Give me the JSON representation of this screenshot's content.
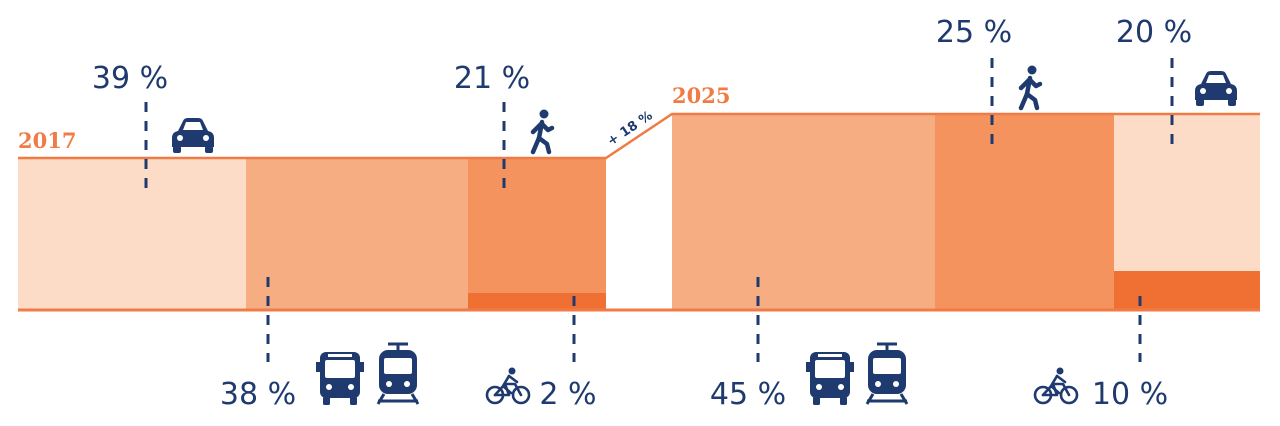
{
  "chart_data": {
    "type": "stacked-bar",
    "title": "",
    "colors": {
      "car": "#fcdcc6",
      "public_transport": "#f7ad82",
      "walking": "#f5935e",
      "cycling": "#f07033",
      "baseline": "#f07b45",
      "labels": "#1f3a6e"
    },
    "icons": {
      "car": "car-icon",
      "public_transport": [
        "bus-icon",
        "tram-icon"
      ],
      "walking": "pedestrian-icon",
      "cycling": "cyclist-icon"
    },
    "years": [
      {
        "year": "2017",
        "total_index": 100,
        "shares": {
          "car": 39,
          "public_transport": 38,
          "walking": 21,
          "cycling": 2
        },
        "labels": {
          "car": "39 %",
          "public_transport": "38 %",
          "walking": "21 %",
          "cycling": "2 %"
        }
      },
      {
        "year": "2025",
        "total_index": 118,
        "shares": {
          "public_transport": 45,
          "walking": 25,
          "car": 20,
          "cycling": 10
        },
        "labels": {
          "public_transport": "45 %",
          "walking": "25 %",
          "car": "20 %",
          "cycling": "10 %"
        }
      }
    ],
    "growth_label": "+ 18 %"
  }
}
